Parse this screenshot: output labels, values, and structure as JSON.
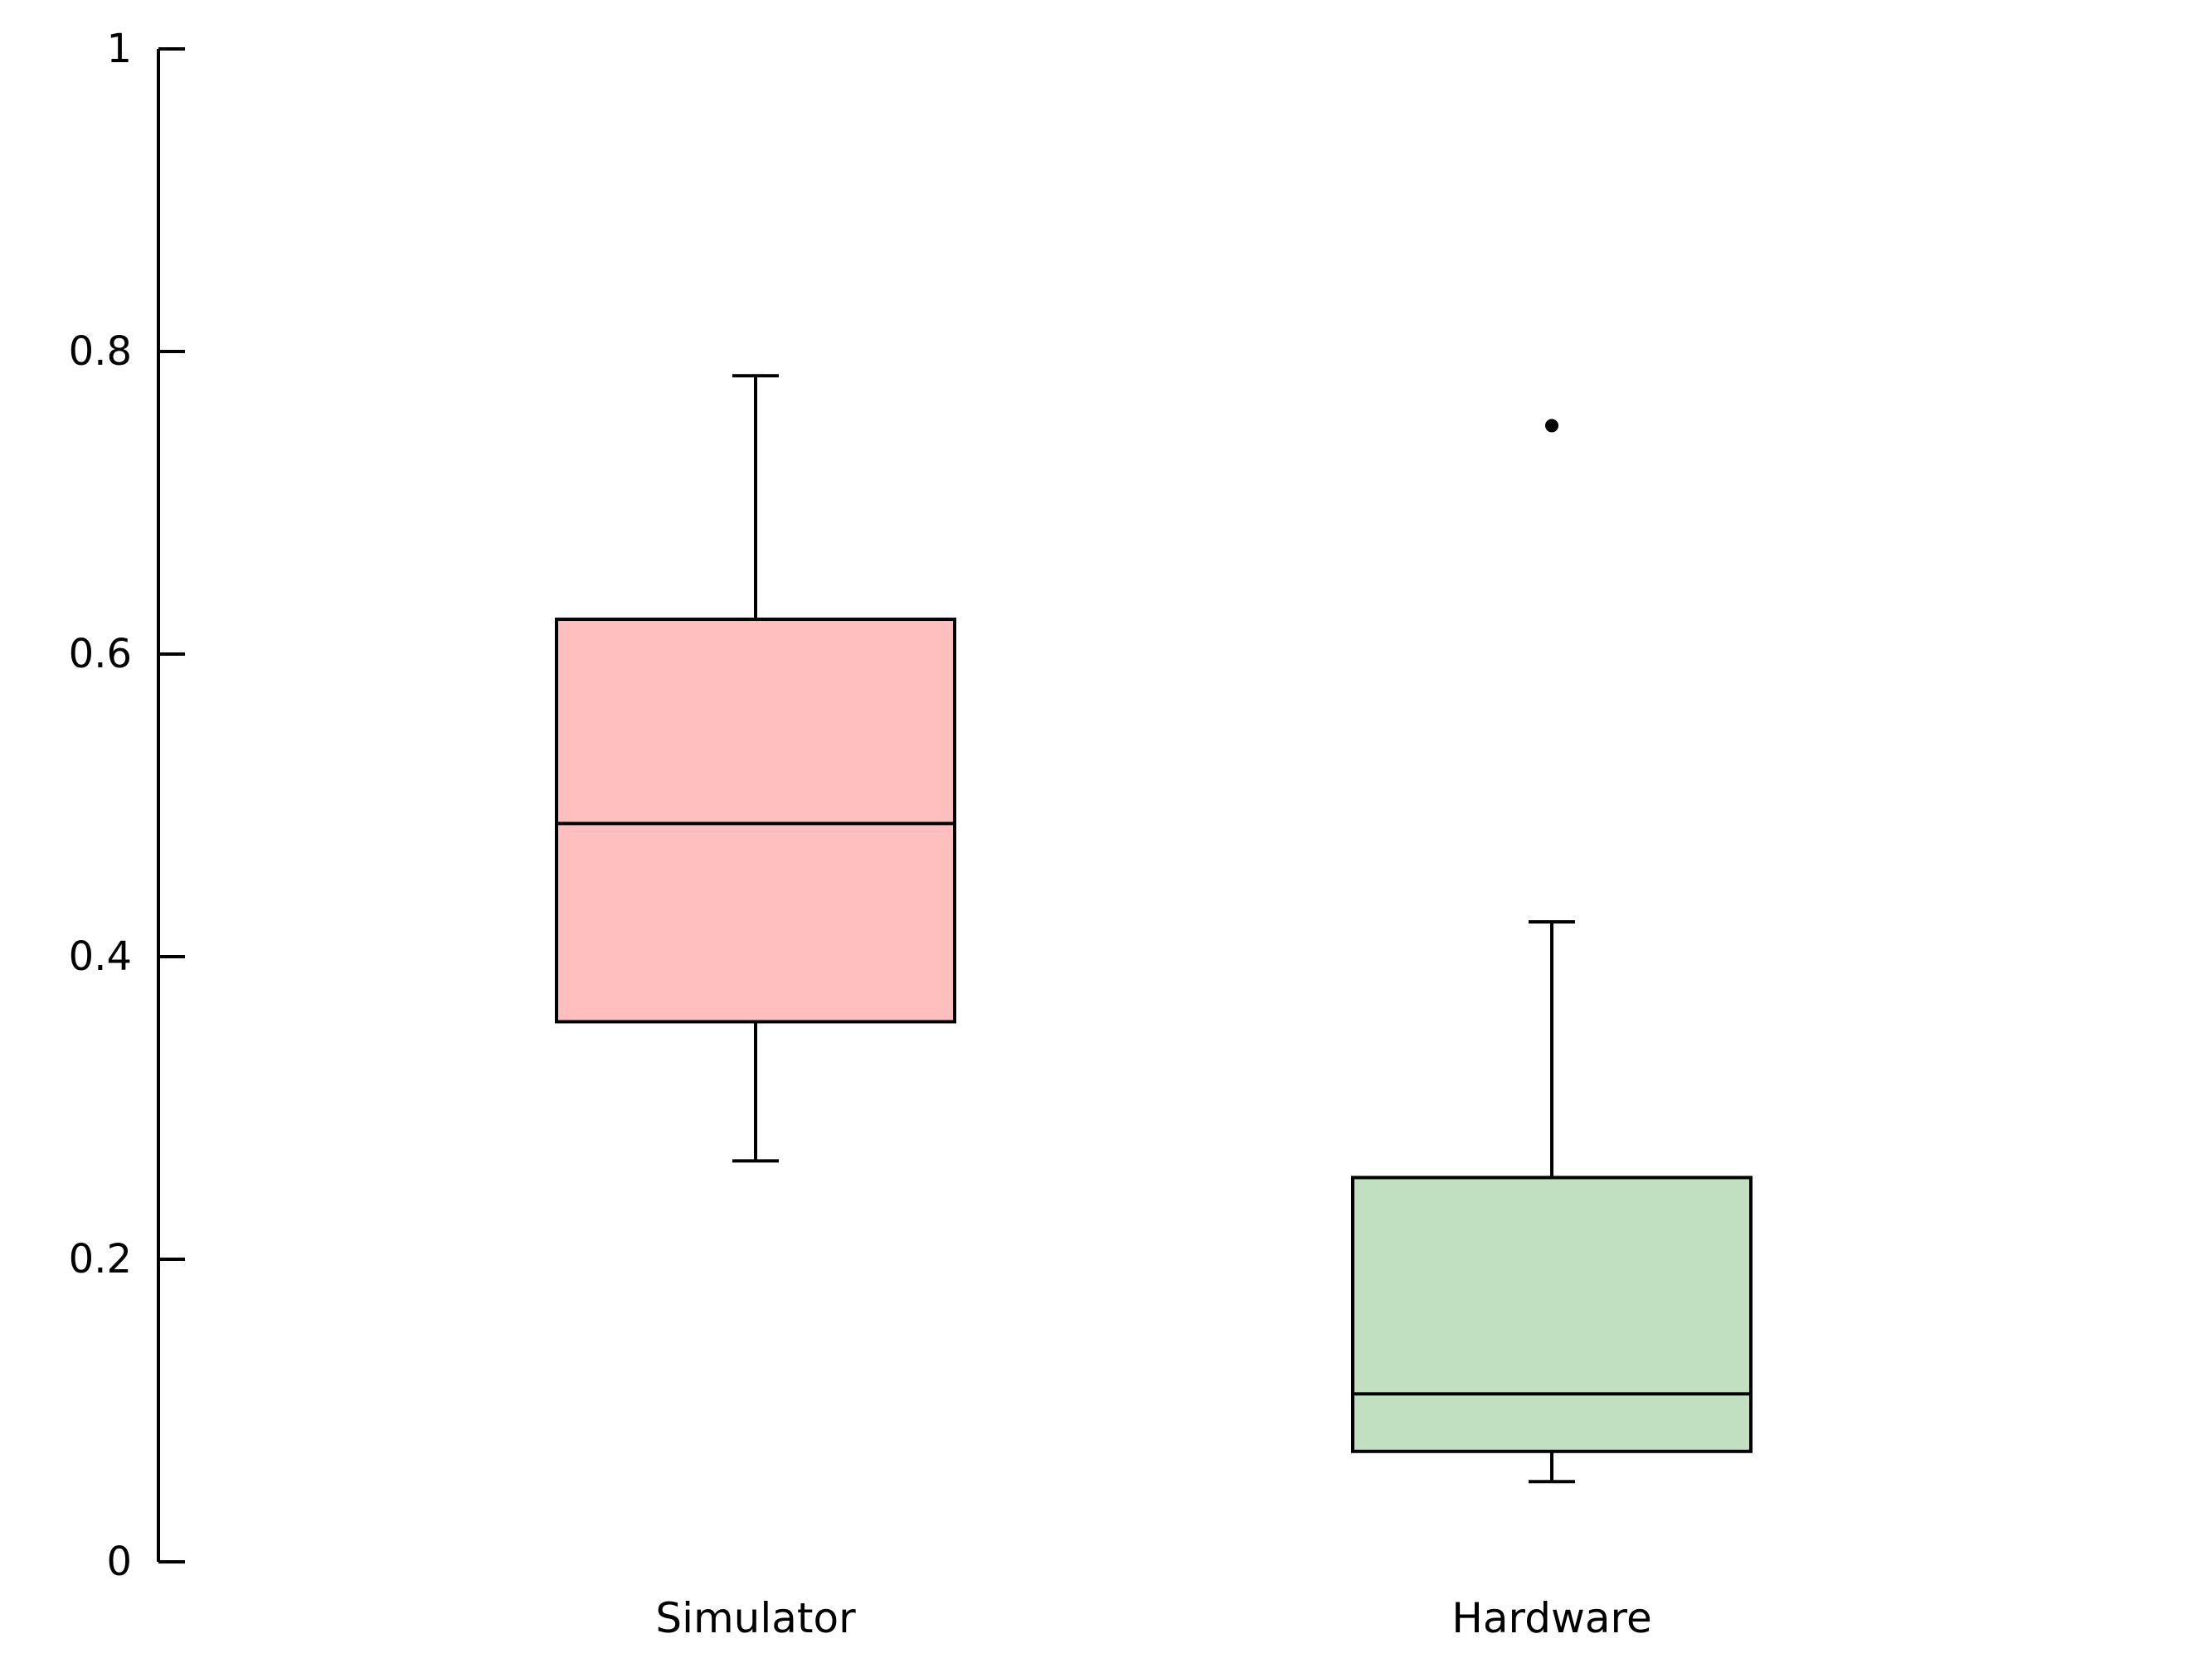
{
  "chart_data": {
    "type": "box",
    "categories": [
      "Simulator",
      "Hardware"
    ],
    "ylim": [
      0,
      1
    ],
    "yticks": [
      0,
      0.2,
      0.4,
      0.6,
      0.8,
      1
    ],
    "ytick_labels": [
      "0",
      "0.2",
      "0.4",
      "0.6",
      "0.8",
      "1"
    ],
    "grid": false,
    "title": "",
    "xlabel": "",
    "ylabel": "",
    "series": [
      {
        "category": "Simulator",
        "whisker_low": 0.265,
        "q1": 0.357,
        "median": 0.488,
        "q3": 0.623,
        "whisker_high": 0.784,
        "outliers": [],
        "color": "#ffbfbf"
      },
      {
        "category": "Hardware",
        "whisker_low": 0.053,
        "q1": 0.073,
        "median": 0.111,
        "q3": 0.254,
        "whisker_high": 0.423,
        "outliers": [
          0.751
        ],
        "color": "#c1dfc1"
      }
    ]
  }
}
